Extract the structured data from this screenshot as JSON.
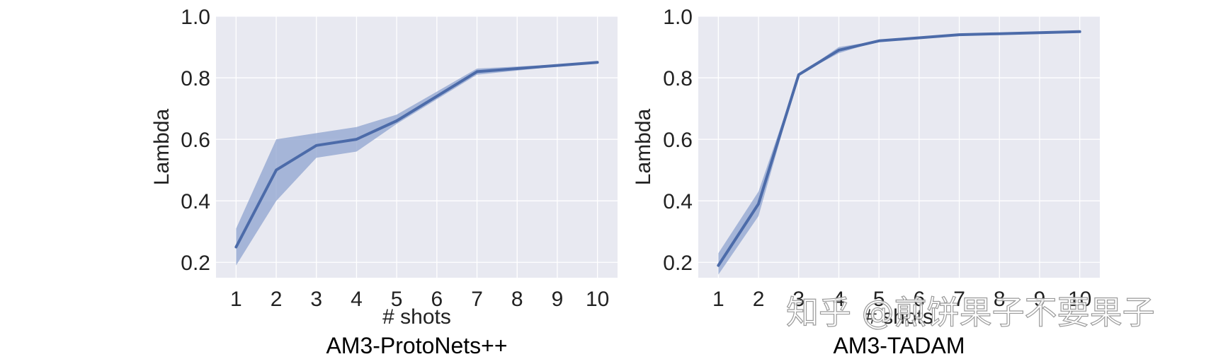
{
  "chart_data": [
    {
      "type": "line",
      "title": "AM3-ProtoNets++",
      "xlabel": "# shots",
      "ylabel": "Lambda",
      "x": [
        1,
        2,
        3,
        4,
        5,
        6,
        7,
        8,
        9,
        10
      ],
      "xticks": [
        "1",
        "2",
        "3",
        "4",
        "5",
        "6",
        "7",
        "8",
        "9",
        "10"
      ],
      "yticks": [
        "0.2",
        "0.4",
        "0.6",
        "0.8",
        "1.0"
      ],
      "ylim": [
        0.15,
        1.0
      ],
      "grid": true,
      "series": [
        {
          "values": [
            0.25,
            0.5,
            0.58,
            0.6,
            0.66,
            null,
            0.82,
            null,
            null,
            0.85
          ],
          "band_lower": [
            0.19,
            0.4,
            0.54,
            0.56,
            0.65,
            null,
            0.81,
            null,
            null,
            0.85
          ],
          "band_upper": [
            0.31,
            0.6,
            0.62,
            0.64,
            0.68,
            null,
            0.83,
            null,
            null,
            0.85
          ]
        }
      ]
    },
    {
      "type": "line",
      "title": "AM3-TADAM",
      "xlabel": "# shots",
      "ylabel": "Lambda",
      "x": [
        1,
        2,
        3,
        4,
        5,
        6,
        7,
        8,
        9,
        10
      ],
      "xticks": [
        "1",
        "2",
        "3",
        "4",
        "5",
        "6",
        "7",
        "8",
        "9",
        "10"
      ],
      "yticks": [
        "0.2",
        "0.4",
        "0.6",
        "0.8",
        "1.0"
      ],
      "ylim": [
        0.15,
        1.0
      ],
      "grid": true,
      "series": [
        {
          "values": [
            0.19,
            0.39,
            0.81,
            0.89,
            0.92,
            null,
            0.94,
            null,
            null,
            0.95
          ],
          "band_lower": [
            0.16,
            0.35,
            0.81,
            0.88,
            0.92,
            null,
            0.94,
            null,
            null,
            0.95
          ],
          "band_upper": [
            0.23,
            0.43,
            0.81,
            0.9,
            0.92,
            null,
            0.94,
            null,
            null,
            0.95
          ]
        }
      ]
    }
  ],
  "style": {
    "plot_background": "#e8e9f1",
    "grid_color": "#ffffff",
    "line_color": "#4c6ba9",
    "band_color": "#8fa3cf"
  },
  "watermark": "知乎 @煎饼果子不要果子"
}
